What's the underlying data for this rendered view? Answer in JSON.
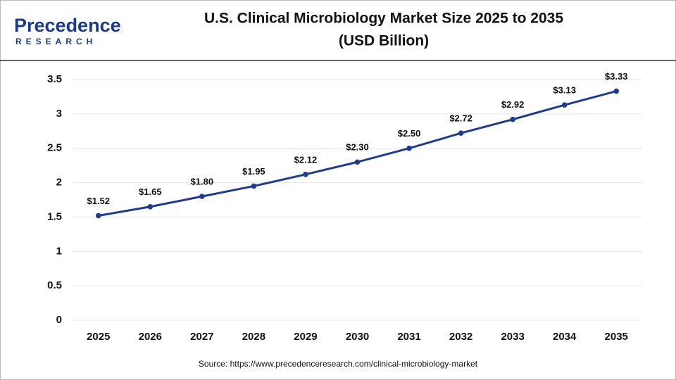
{
  "logo": {
    "name": "Precedence",
    "sub": "RESEARCH"
  },
  "chart_data": {
    "type": "line",
    "title": "U.S. Clinical Microbiology Market Size 2025 to 2035",
    "subtitle": "(USD Billion)",
    "categories": [
      "2025",
      "2026",
      "2027",
      "2028",
      "2029",
      "2030",
      "2031",
      "2032",
      "2033",
      "2034",
      "2035"
    ],
    "values": [
      1.52,
      1.65,
      1.8,
      1.95,
      2.12,
      2.3,
      2.5,
      2.72,
      2.92,
      3.13,
      3.33
    ],
    "value_labels": [
      "$1.52",
      "$1.65",
      "$1.80",
      "$1.95",
      "$2.12",
      "$2.30",
      "$2.50",
      "$2.72",
      "$2.92",
      "$3.13",
      "$3.33"
    ],
    "color": "#1f3c8f",
    "ylim": [
      0,
      3.5
    ],
    "yticks": [
      0,
      0.5,
      1,
      1.5,
      2,
      2.5,
      3,
      3.5
    ],
    "grid": true,
    "source": "Source: https://www.precedenceresearch.com/clinical-microbiology-market"
  }
}
